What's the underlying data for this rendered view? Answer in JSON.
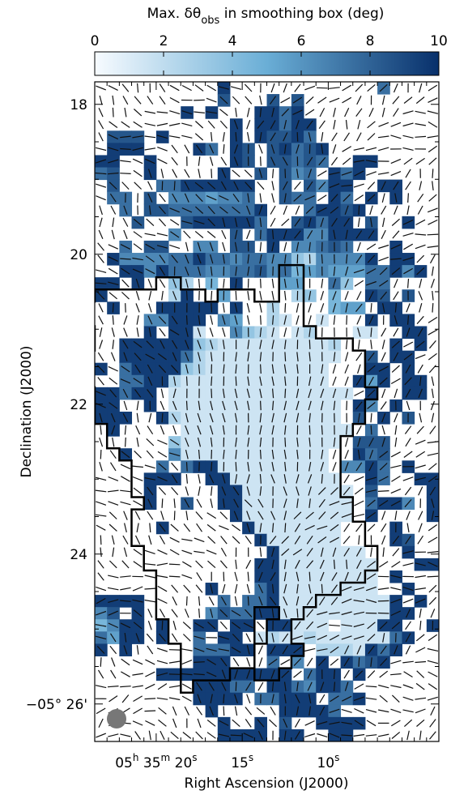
{
  "chart_data": {
    "type": "heatmap",
    "colorbar": {
      "title_prefix": "Max. δθ",
      "title_sub": "obs",
      "title_suffix": " in smoothing box (deg)",
      "min": 0,
      "max": 10,
      "ticks": [
        "0",
        "2",
        "4",
        "6",
        "8",
        "10"
      ],
      "colors": [
        "#f7fbff",
        "#6aaed6",
        "#08306b"
      ]
    },
    "xlabel": "Right Ascension (J2000)",
    "ylabel": "Declination (J2000)",
    "ylim": [
      17.7,
      26.5
    ],
    "x_ticks": [
      {
        "label": "05h 35m 20s",
        "parts": [
          {
            "t": "05"
          },
          {
            "t": "h",
            "sup": true
          },
          {
            "t": " 35"
          },
          {
            "t": "m",
            "sup": true
          },
          {
            "t": " 20"
          },
          {
            "t": "s",
            "sup": true
          }
        ],
        "col": 5
      },
      {
        "label": "15s",
        "parts": [
          {
            "t": "15"
          },
          {
            "t": "s",
            "sup": true
          }
        ],
        "col": 12
      },
      {
        "label": "10s",
        "parts": [
          {
            "t": "10"
          },
          {
            "t": "s",
            "sup": true
          }
        ],
        "col": 19
      }
    ],
    "y_ticks": [
      {
        "label": "18",
        "value": 18
      },
      {
        "label": "20",
        "value": 20
      },
      {
        "label": "22",
        "value": 22
      },
      {
        "label": "24",
        "value": 24
      },
      {
        "label": "−05° 26'",
        "value": 26
      }
    ],
    "beam": {
      "label": "beam",
      "color": "#777777"
    },
    "grid": {
      "cols": 28,
      "rows": 54,
      "dec_start": 17.7,
      "dec_step": 0.163
    },
    "values": [
      "..........9............7....",
      "..........8...8.8...........",
      ".......9.9...9979...........",
      "...........9.99799..........",
      ".888.9.....9.98897..........",
      ".999....97.98.89789.........",
      "99..9......98.88787..99.....",
      "78..9.....9..8.867.979......",
      ".8...77999999..8.8699..99...",
      ".77.8.6665667..877.97.9.9...",
      "..7.8877777779...79989......",
      "...8...8999997..89799.8..9..",
      "......6....8.7999669999.....",
      "..7.88..66.88.9.66787...9...",
      ".9666677977677663266669.99..",
      "..9969777667786745655577969.",
      "99.9..32.4.9...55..73.77....",
      "9.....29..5.....23.4..98.8..",
      ".9...99999.9..2....455.99...",
      "....66999.65..21..1...9.99..",
      "....9.991..6321.12...11..99.",
      "..999999321111111112....9.9.",
      "..999997211111111111..8.99..",
      "9.79999321111111111...99.9..",
      "..77992111111111111..959.99.",
      "99799.111111111111111.9..99.",
      "99..9.11111111111111.96.9...",
      "999..921111111111111.8.9.8..",
      ".9.....11111111111111.7.....",
      "......31111111111111.888....",
      "..9...6111111111111..978....",
      ".....7.799111111111.6697.9..",
      "....999..99111111111..97..99",
      "....9.....99111111111.8....9",
      "....9..8..99111111111.7996.9",
      "...........9111111111.9....9",
      ".....9......91111111....9...",
      ".............9111111....98..",
      "..............91111111...9..",
      ".............9911111111...99",
      ".............9911111111.9...",
      ".........9...7911111111..9..",
      "9999......7.7791111111119.9.",
      "68.9.....68779911111111199..",
      "4699.9..99.99.99111.11199..9",
      "7599.9..7.99.1211211111179..",
      "9.9.....77799.999.2221979...",
      "........999...7.6.9.9789....",
      ".....99999999999.799.9......",
      "........99977.9976997.......",
      "........9999.77999.779......",
      ".........9.....99997........",
      "..........9..9.8..9999......",
      "..........9999.99..99......."
    ],
    "boundary": [
      [
        6,
        16
      ],
      [
        7,
        16
      ],
      [
        7,
        17
      ],
      [
        8,
        17
      ],
      [
        9,
        17
      ],
      [
        9,
        18
      ],
      [
        10,
        18
      ],
      [
        10,
        17
      ],
      [
        13,
        17
      ],
      [
        13,
        18
      ],
      [
        15,
        18
      ],
      [
        15,
        15
      ],
      [
        17,
        15
      ],
      [
        17,
        20
      ],
      [
        18,
        20
      ],
      [
        18,
        21
      ],
      [
        21,
        21
      ],
      [
        21,
        22
      ],
      [
        22,
        22
      ],
      [
        22,
        25
      ],
      [
        23,
        25
      ],
      [
        23,
        26
      ],
      [
        22,
        26
      ],
      [
        22,
        28
      ],
      [
        21,
        28
      ],
      [
        21,
        29
      ],
      [
        20,
        29
      ],
      [
        20,
        34
      ],
      [
        21,
        34
      ],
      [
        21,
        36
      ],
      [
        22,
        36
      ],
      [
        22,
        38
      ],
      [
        23,
        38
      ],
      [
        23,
        40
      ],
      [
        22,
        40
      ],
      [
        22,
        41
      ],
      [
        20,
        41
      ],
      [
        20,
        42
      ],
      [
        18,
        42
      ],
      [
        18,
        43
      ],
      [
        17,
        43
      ],
      [
        17,
        44
      ],
      [
        16,
        44
      ],
      [
        16,
        46
      ],
      [
        17,
        46
      ],
      [
        17,
        47
      ],
      [
        16,
        47
      ],
      [
        16,
        48
      ],
      [
        15,
        48
      ],
      [
        15,
        49
      ],
      [
        13,
        49
      ],
      [
        13,
        46
      ],
      [
        14,
        46
      ],
      [
        14,
        44
      ],
      [
        15,
        44
      ],
      [
        15,
        43
      ],
      [
        13,
        43
      ],
      [
        13,
        48
      ],
      [
        11,
        48
      ],
      [
        11,
        49
      ],
      [
        8,
        49
      ],
      [
        8,
        50
      ],
      [
        7,
        50
      ],
      [
        7,
        46
      ],
      [
        6,
        46
      ],
      [
        6,
        44
      ],
      [
        5,
        44
      ],
      [
        5,
        40
      ],
      [
        4,
        40
      ],
      [
        4,
        38
      ],
      [
        3,
        38
      ],
      [
        3,
        35
      ],
      [
        4,
        35
      ],
      [
        4,
        34
      ],
      [
        3,
        34
      ],
      [
        3,
        31
      ],
      [
        2,
        31
      ],
      [
        2,
        30
      ],
      [
        1,
        30
      ],
      [
        1,
        28
      ],
      [
        0,
        28
      ],
      [
        0,
        25
      ],
      [
        -1,
        25
      ],
      [
        -1,
        22
      ],
      [
        0,
        22
      ],
      [
        0,
        20
      ],
      [
        -1,
        20
      ],
      [
        -1,
        18
      ],
      [
        0,
        18
      ],
      [
        0,
        17
      ],
      [
        5,
        17
      ],
      [
        5,
        16
      ],
      [
        6,
        16
      ]
    ]
  }
}
